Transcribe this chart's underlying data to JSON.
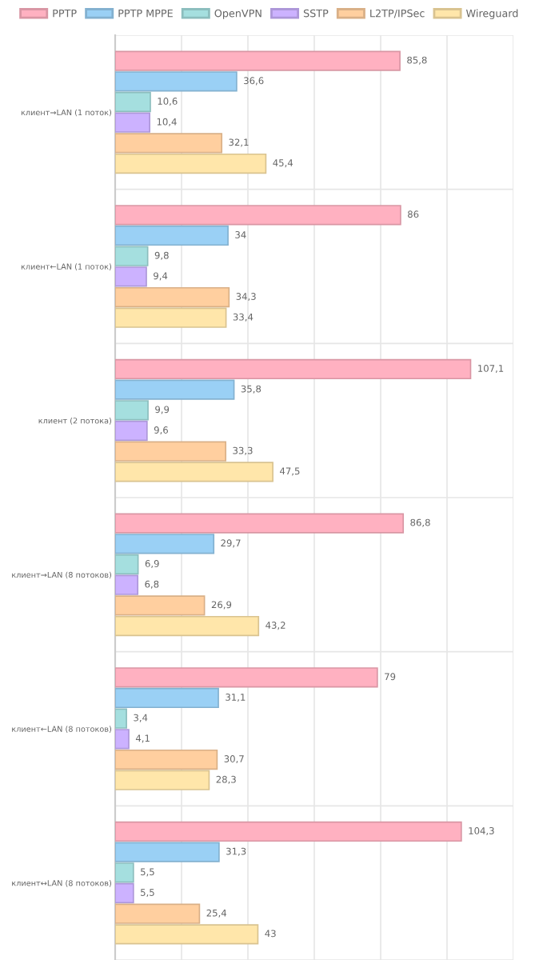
{
  "chart_data": {
    "type": "bar",
    "orientation": "horizontal",
    "categories": [
      "клиент→LAN (1 поток)",
      "клиент←LAN (1 поток)",
      "клиент (2 потока)",
      "клиент→LAN (8 потоков)",
      "клиент←LAN (8 потоков)",
      "клиент↔LAN (8 потоков)"
    ],
    "series": [
      {
        "name": "PPTP",
        "color": "#ffb1c1",
        "values": [
          85.8,
          86,
          107.1,
          86.8,
          79,
          104.3
        ],
        "value_labels": [
          "85,8",
          "86",
          "107,1",
          "86,8",
          "79",
          "104,3"
        ]
      },
      {
        "name": "PPTP MPPE",
        "color": "#9ad0f5",
        "values": [
          36.6,
          34,
          35.8,
          29.7,
          31.1,
          31.3
        ],
        "value_labels": [
          "36,6",
          "34",
          "35,8",
          "29,7",
          "31,1",
          "31,3"
        ]
      },
      {
        "name": "OpenVPN",
        "color": "#a5dfdf",
        "values": [
          10.6,
          9.8,
          9.9,
          6.9,
          3.4,
          5.5
        ],
        "value_labels": [
          "10,6",
          "9,8",
          "9,9",
          "6,9",
          "3,4",
          "5,5"
        ]
      },
      {
        "name": "SSTP",
        "color": "#ccb2ff",
        "values": [
          10.4,
          9.4,
          9.6,
          6.8,
          4.1,
          5.5
        ],
        "value_labels": [
          "10,4",
          "9,4",
          "9,6",
          "6,8",
          "4,1",
          "5,5"
        ]
      },
      {
        "name": "L2TP/IPSec",
        "color": "#ffcf9f",
        "values": [
          32.1,
          34.3,
          33.3,
          26.9,
          30.7,
          25.4
        ],
        "value_labels": [
          "32,1",
          "34,3",
          "33,3",
          "26,9",
          "30,7",
          "25,4"
        ]
      },
      {
        "name": "Wireguard",
        "color": "#ffe6aa",
        "values": [
          45.4,
          33.4,
          47.5,
          43.2,
          28.3,
          43
        ],
        "value_labels": [
          "45,4",
          "33,4",
          "47,5",
          "43,2",
          "28,3",
          "43"
        ]
      }
    ],
    "xlim": [
      0,
      120
    ],
    "xticks": [
      {
        "value": 0,
        "label": null
      },
      {
        "value": 20,
        "label": null
      },
      {
        "value": 40,
        "label": null
      },
      {
        "value": 60,
        "label": null
      },
      {
        "value": 80,
        "label": null
      },
      {
        "value": 100,
        "label": null
      },
      {
        "value": 120,
        "label": null
      }
    ],
    "tick_labels": "y",
    "grid": true,
    "legend": "top"
  }
}
